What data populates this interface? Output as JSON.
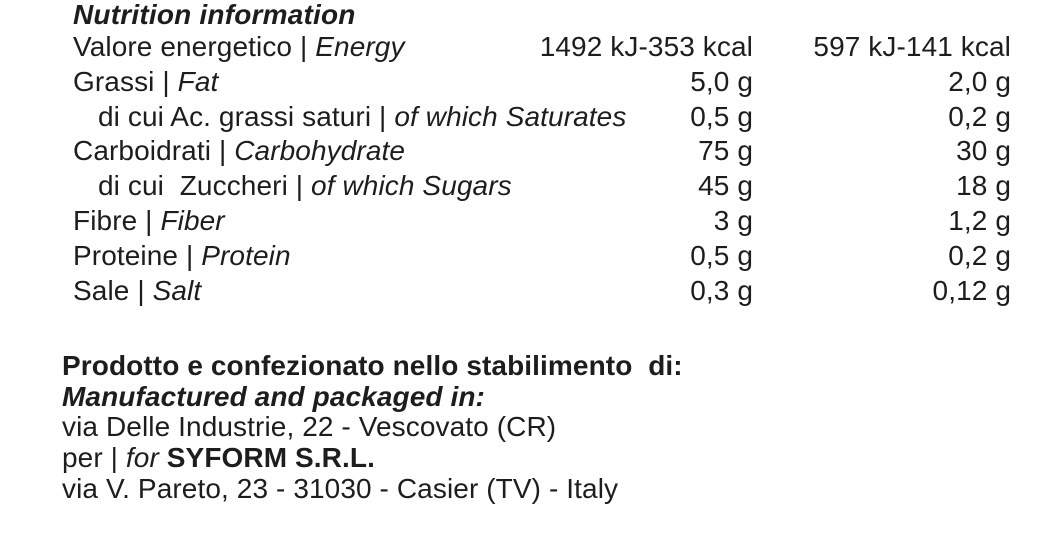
{
  "colors": {
    "text": "#1d1d1b",
    "background": "#ffffff"
  },
  "title": "Nutrition information",
  "table": {
    "separator": " | ",
    "rows": [
      {
        "it": "Valore energetico",
        "en": "Energy",
        "v1": "1492 kJ-353 kcal",
        "v2": "597 kJ-141 kcal"
      },
      {
        "it": "Grassi",
        "en": "Fat",
        "v1": "5,0 g",
        "v2": "2,0 g"
      },
      {
        "it": "di cui Ac. grassi saturi",
        "en": "of which Saturates",
        "v1": "0,5 g",
        "v2": "0,2 g"
      },
      {
        "it": "Carboidrati",
        "en": "Carbohydrate",
        "v1": "75 g",
        "v2": "30 g"
      },
      {
        "it": "di cui  Zuccheri",
        "en": "of which Sugars",
        "v1": "45 g",
        "v2": "18 g"
      },
      {
        "it": "Fibre",
        "en": "Fiber",
        "v1": "3 g",
        "v2": "1,2 g"
      },
      {
        "it": "Proteine",
        "en": "Protein",
        "v1": "0,5 g",
        "v2": "0,2 g"
      },
      {
        "it": "Sale",
        "en": "Salt",
        "v1": "0,3 g",
        "v2": "0,12 g"
      }
    ]
  },
  "footer": {
    "produced_in_it": "Prodotto e confezionato nello stabilimento  di:",
    "produced_in_en": "Manufactured and packaged in:",
    "factory_address": "via Delle Industrie, 22 - Vescovato (CR)",
    "per_for_prefix": "per | ",
    "per_for_italic": "for",
    "company_name": " SYFORM S.R.L.",
    "company_address": "via V. Pareto, 23 - 31030 - Casier (TV) - Italy"
  }
}
